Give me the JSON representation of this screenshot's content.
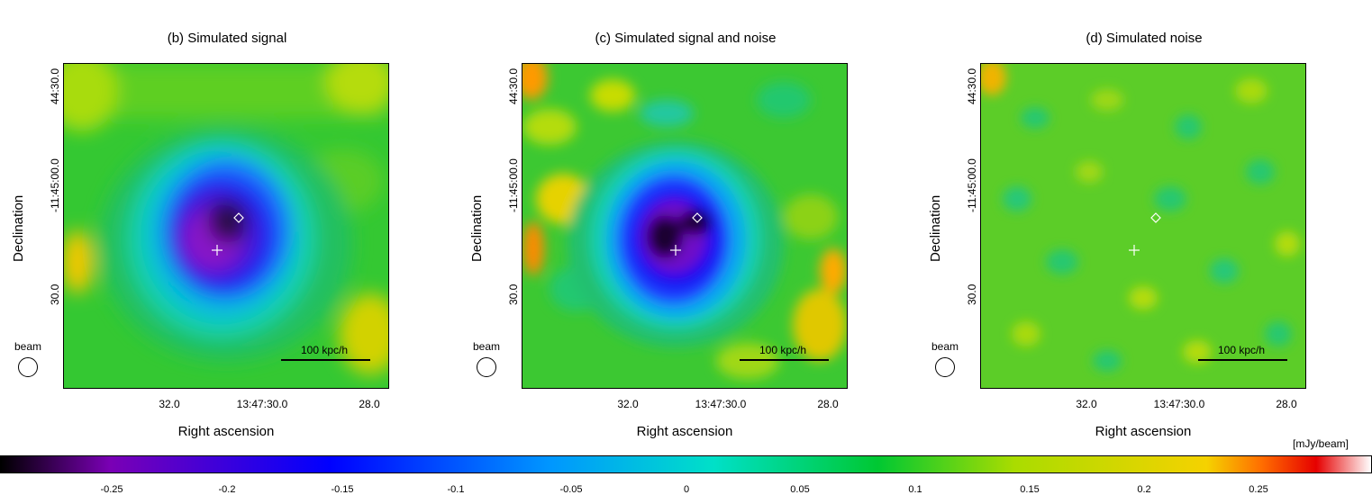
{
  "panels": [
    {
      "title": "(b) Simulated signal",
      "ylabel": "Declination",
      "xlabel": "Right ascension",
      "yticks": [
        "44:30.0",
        "-11:45:00.0",
        "30.0"
      ],
      "xticks": [
        "32.0",
        "13:47:30.0",
        "28.0"
      ],
      "beam_label": "beam",
      "scale_label": "100 kpc/h",
      "variant": "signal"
    },
    {
      "title": "(c) Simulated signal and noise",
      "ylabel": "Declination",
      "xlabel": "Right ascension",
      "yticks": [
        "44:30.0",
        "-11:45:00.0",
        "30.0"
      ],
      "xticks": [
        "32.0",
        "13:47:30.0",
        "28.0"
      ],
      "beam_label": "beam",
      "scale_label": "100 kpc/h",
      "variant": "signal_noise"
    },
    {
      "title": "(d) Simulated noise",
      "ylabel": "Declination",
      "xlabel": "Right ascension",
      "yticks": [
        "44:30.0",
        "-11:45:00.0",
        "30.0"
      ],
      "xticks": [
        "32.0",
        "13:47:30.0",
        "28.0"
      ],
      "beam_label": "beam",
      "scale_label": "100 kpc/h",
      "variant": "noise"
    }
  ],
  "colorbar": {
    "unit": "[mJy/beam]",
    "ticks": [
      "-0.25",
      "-0.2",
      "-0.15",
      "-0.1",
      "-0.05",
      "0",
      "0.05",
      "0.1",
      "0.15",
      "0.2",
      "0.25"
    ],
    "colors": [
      "#000000",
      "#7a00b5",
      "#0000ff",
      "#0096ff",
      "#00e0c8",
      "#00c832",
      "#aadc00",
      "#f5d200",
      "#ff6e00",
      "#e60000",
      "#ffffff"
    ]
  },
  "markers": {
    "cross_color": "#ffffff",
    "diamond_color": "#ffffff"
  }
}
